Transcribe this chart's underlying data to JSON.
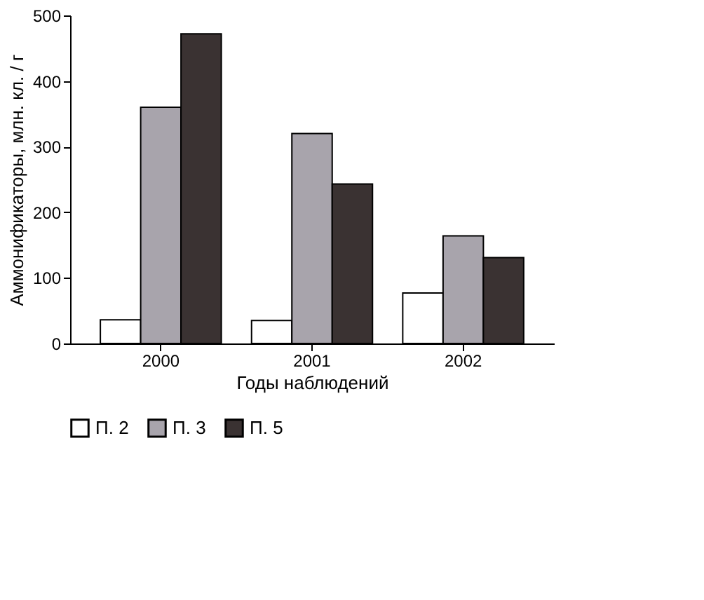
{
  "chart_data": {
    "type": "bar",
    "xlabel": "Годы наблюдений",
    "ylabel": "Аммонификаторы, млн. кл. / г",
    "categories": [
      "2000",
      "2001",
      "2002"
    ],
    "series": [
      {
        "name": "П. 2",
        "color": "#ffffff",
        "values": [
          36,
          35,
          77
        ]
      },
      {
        "name": "П. 3",
        "color": "#a8a4ac",
        "values": [
          360,
          320,
          164
        ]
      },
      {
        "name": "П. 5",
        "color": "#3a3232",
        "values": [
          472,
          243,
          131
        ]
      }
    ],
    "ylim": [
      0,
      500
    ],
    "yticks": [
      0,
      100,
      200,
      300,
      400,
      500
    ],
    "grid": false,
    "legend": "bottom"
  }
}
